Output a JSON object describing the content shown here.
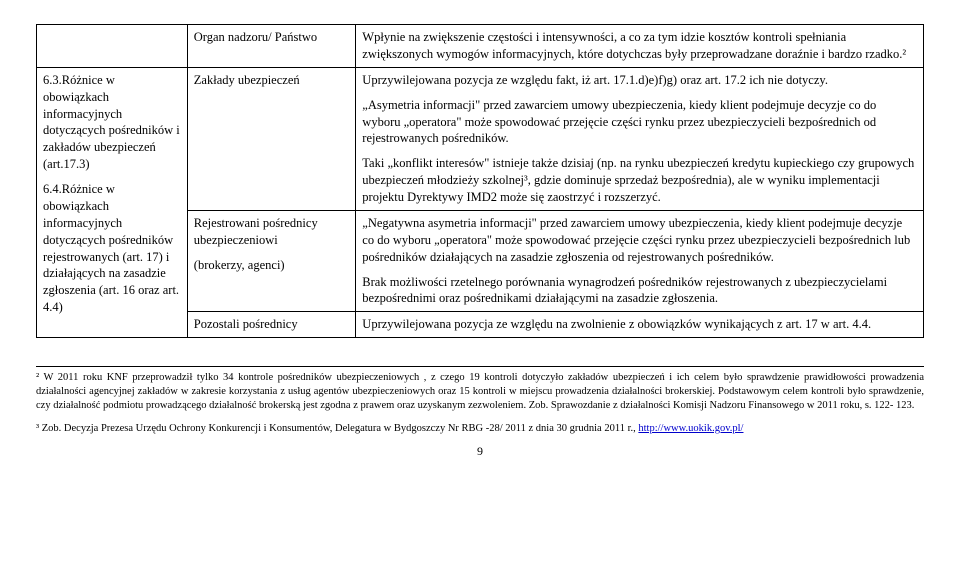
{
  "table": {
    "row1": {
      "c1": "",
      "c2": "Organ nadzoru/ Państwo",
      "c3": "Wpłynie na zwiększenie częstości i intensywności, a co za tym idzie kosztów kontroli spełniania zwiększonych wymogów informacyjnych, które dotychczas były przeprowadzane doraźnie i bardzo rzadko.²"
    },
    "row2": {
      "c1_p1": "6.3.Różnice w obowiązkach informacyjnych dotyczących pośredników i zakładów ubezpieczeń (art.17.3)",
      "c1_p2": "6.4.Różnice w obowiązkach informacyjnych dotyczących pośredników rejestrowanych (art. 17) i działających na zasadzie zgłoszenia (art. 16 oraz art. 4.4)",
      "c2a": "Zakłady ubezpieczeń",
      "c3a_p1": "Uprzywilejowana pozycja ze względu fakt, iż art. 17.1.d)e)f)g) oraz art. 17.2 ich nie dotyczy.",
      "c3a_p2": "„Asymetria informacji\" przed zawarciem umowy ubezpieczenia, kiedy klient podejmuje decyzje co do wyboru „operatora\" może spowodować przejęcie części rynku przez ubezpieczycieli bezpośrednich od rejestrowanych pośredników.",
      "c3a_p3": "Taki „konflikt interesów\" istnieje także dzisiaj (np. na rynku ubezpieczeń kredytu kupieckiego czy grupowych ubezpieczeń młodzieży szkolnej³, gdzie dominuje sprzedaż bezpośrednia), ale w wyniku implementacji projektu Dyrektywy IMD2 może się zaostrzyć i rozszerzyć.",
      "c2b_p1": "Rejestrowani pośrednicy ubezpieczeniowi",
      "c2b_p2": "(brokerzy, agenci)",
      "c3b_p1": "„Negatywna asymetria informacji\" przed zawarciem umowy ubezpieczenia, kiedy klient podejmuje decyzje co do wyboru „operatora\" może spowodować przejęcie części rynku przez ubezpieczycieli bezpośrednich lub pośredników działających na zasadzie zgłoszenia od rejestrowanych pośredników.",
      "c3b_p2": "Brak możliwości rzetelnego porównania wynagrodzeń pośredników rejestrowanych z ubezpieczycielami bezpośrednimi oraz pośrednikami działającymi na zasadzie zgłoszenia.",
      "c2c": "Pozostali pośrednicy",
      "c3c": "Uprzywilejowana pozycja ze względu na zwolnienie z obowiązków wynikających z art. 17 w art. 4.4."
    }
  },
  "footnotes": {
    "f2": "² W 2011 roku KNF przeprowadził tylko 34 kontrole pośredników ubezpieczeniowych , z czego 19 kontroli dotyczyło zakładów ubezpieczeń i ich celem było sprawdzenie prawidłowości prowadzenia działalności agencyjnej  zakładów w zakresie korzystania z usług agentów ubezpieczeniowych oraz 15 kontroli w miejscu prowadzenia działalności brokerskiej.  Podstawowym celem kontroli było sprawdzenie, czy działalność podmiotu prowadzącego działalność brokerską jest zgodna z prawem oraz uzyskanym zezwoleniem.  Zob. Sprawozdanie z działalności Komisji Nadzoru Finansowego w 2011 roku, s. 122- 123.",
    "f3_pre": "³ Zob. Decyzja Prezesa Urzędu Ochrony Konkurencji i Konsumentów, Delegatura w Bydgoszczy Nr RBG -28/ 2011 z dnia 30 grudnia 2011 r., ",
    "f3_link": "http://www.uokik.gov.pl/"
  },
  "pagenum": "9"
}
